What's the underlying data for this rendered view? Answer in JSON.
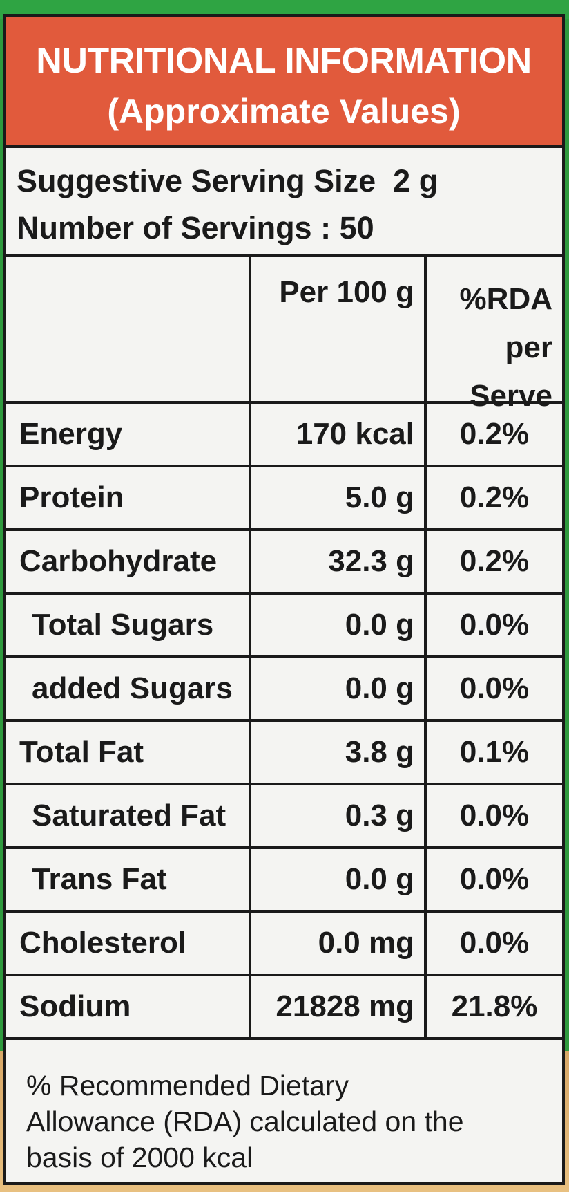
{
  "header": {
    "title": "NUTRITIONAL INFORMATION",
    "subtitle": "(Approximate Values)"
  },
  "serving": {
    "size_text": "Suggestive Serving Size  2 g",
    "count_text": "Number of Servings : 50"
  },
  "table": {
    "col_per100": "Per 100 g",
    "col_rda": [
      "%RDA",
      "per",
      "Serve"
    ],
    "rows": [
      {
        "nutrient": "Energy",
        "per100": "170 kcal",
        "rda": "0.2%",
        "indent": false
      },
      {
        "nutrient": "Protein",
        "per100": "5.0 g",
        "rda": "0.2%",
        "indent": false
      },
      {
        "nutrient": "Carbohydrate",
        "per100": "32.3 g",
        "rda": "0.2%",
        "indent": false
      },
      {
        "nutrient": "Total Sugars",
        "per100": "0.0 g",
        "rda": "0.0%",
        "indent": true
      },
      {
        "nutrient": "added Sugars",
        "per100": "0.0 g",
        "rda": "0.0%",
        "indent": true
      },
      {
        "nutrient": "Total Fat",
        "per100": "3.8 g",
        "rda": "0.1%",
        "indent": false
      },
      {
        "nutrient": "Saturated Fat",
        "per100": "0.3 g",
        "rda": "0.0%",
        "indent": true
      },
      {
        "nutrient": "Trans Fat",
        "per100": "0.0 g",
        "rda": "0.0%",
        "indent": true
      },
      {
        "nutrient": "Cholesterol",
        "per100": "0.0 mg",
        "rda": "0.0%",
        "indent": false
      },
      {
        "nutrient": "Sodium",
        "per100": "21828 mg",
        "rda": "21.8%",
        "indent": false
      }
    ]
  },
  "footnote": {
    "lines": [
      "% Recommended Dietary",
      "Allowance (RDA) calculated on the",
      "basis of 2000 kcal"
    ]
  }
}
